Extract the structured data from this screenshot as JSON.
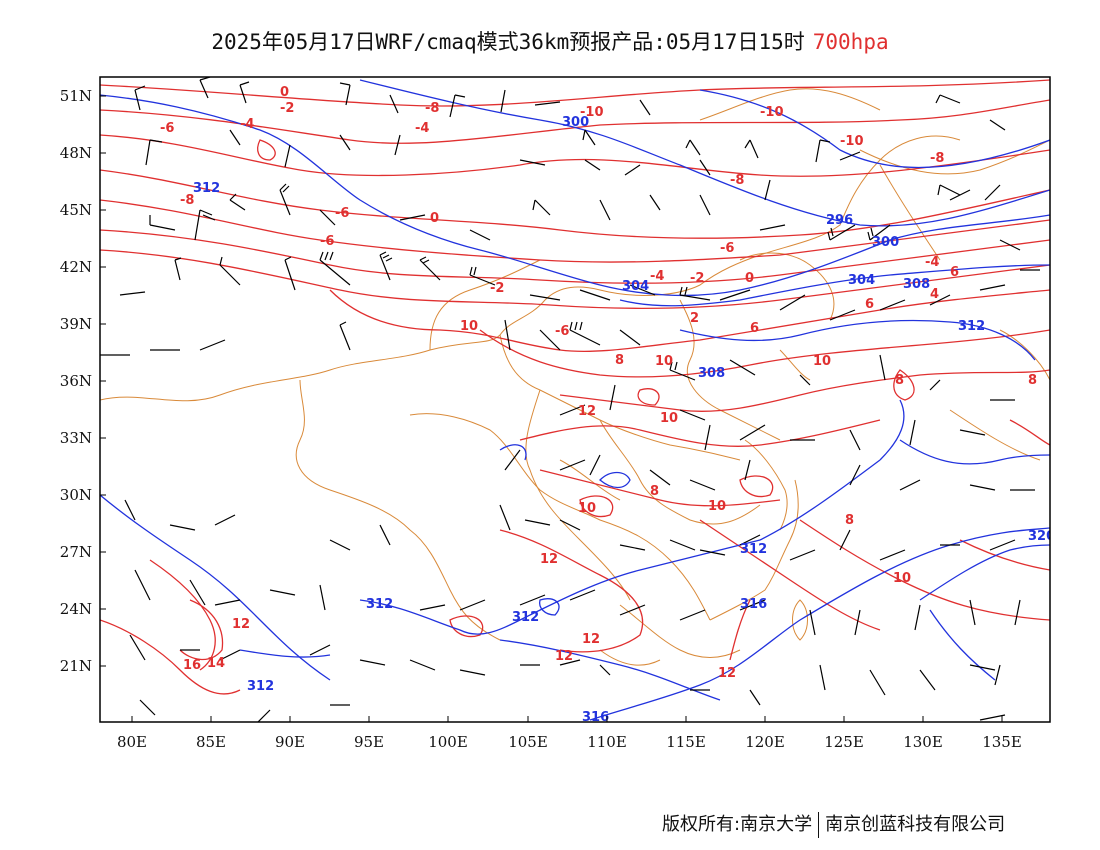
{
  "title": {
    "main": "2025年05月17日WRF/cmaq模式36km预报产品:05月17日15时",
    "level": "700hpa"
  },
  "footer": {
    "copyright": "版权所有:南京大学",
    "company": "南京创蓝科技有限公司"
  },
  "axes": {
    "lon_ticks": [
      "80E",
      "85E",
      "90E",
      "95E",
      "100E",
      "105E",
      "110E",
      "115E",
      "120E",
      "125E",
      "130E",
      "135E"
    ],
    "lat_ticks": [
      "51N",
      "48N",
      "45N",
      "42N",
      "39N",
      "36N",
      "33N",
      "30N",
      "27N",
      "24N",
      "21N"
    ]
  },
  "colors": {
    "temperature": "#e03030",
    "height": "#2233dd",
    "boundary": "#d98a3a",
    "wind": "#000000"
  },
  "temperature_labels": [
    "-10",
    "-10",
    "-10",
    "-8",
    "-8",
    "-8",
    "-6",
    "-6",
    "-6",
    "-6",
    "-4",
    "-4",
    "-4",
    "-4",
    "-2",
    "-2",
    "-2",
    "0",
    "0",
    "0",
    "-6",
    "-8",
    "2",
    "4",
    "6",
    "6",
    "6",
    "8",
    "8",
    "8",
    "8",
    "8",
    "10",
    "10",
    "10",
    "10",
    "10",
    "10",
    "10",
    "12",
    "12",
    "12",
    "12",
    "12",
    "12",
    "14",
    "16"
  ],
  "height_labels": [
    "300",
    "312",
    "296",
    "300",
    "304",
    "308",
    "304",
    "308",
    "312",
    "312",
    "312",
    "312",
    "316",
    "320",
    "316",
    "312"
  ]
}
